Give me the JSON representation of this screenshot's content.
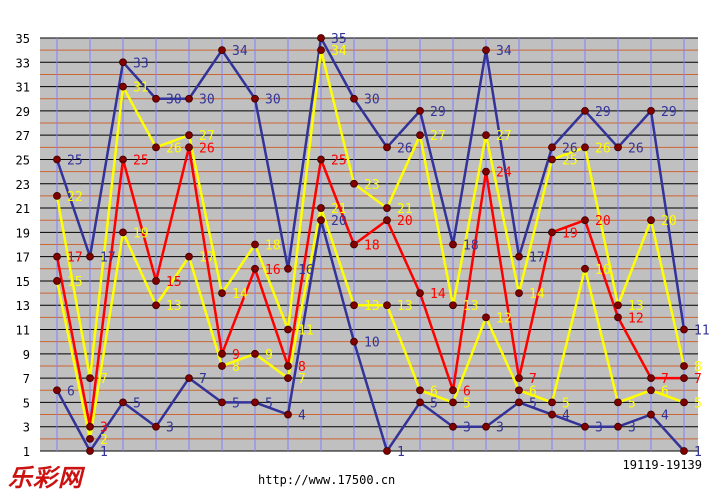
{
  "brand_logo": "乐彩网",
  "url_text": "http://www.17500.cn",
  "issue_range": "19119-19139",
  "colors": {
    "plot_bg": "#c0c0c0",
    "grid_odd": "#000000",
    "grid_even": "#cc6633",
    "grid_vertical": "#8080ff",
    "marker": "#800000"
  },
  "chart_data": {
    "type": "line",
    "x": [
      1,
      2,
      3,
      4,
      5,
      6,
      7,
      8,
      9,
      10,
      11,
      12,
      13,
      14,
      15,
      16,
      17,
      18,
      19,
      20
    ],
    "ylim": [
      1,
      35
    ],
    "yticks": [
      1,
      3,
      5,
      7,
      9,
      11,
      13,
      15,
      17,
      19,
      21,
      23,
      25,
      27,
      29,
      31,
      33,
      35
    ],
    "grid": true,
    "series": [
      {
        "color": "#333399",
        "values": [
          25,
          17,
          33,
          30,
          30,
          34,
          30,
          16,
          35,
          30,
          26,
          29,
          18,
          34,
          17,
          26,
          29,
          26,
          29,
          11
        ]
      },
      {
        "color": "#ffff00",
        "values": [
          22,
          7,
          31,
          26,
          27,
          14,
          18,
          11,
          34,
          23,
          21,
          27,
          13,
          27,
          14,
          25,
          26,
          13,
          20,
          8
        ]
      },
      {
        "color": "#ff0000",
        "values": [
          17,
          3,
          25,
          15,
          26,
          9,
          16,
          8,
          25,
          18,
          20,
          14,
          6,
          24,
          7,
          19,
          20,
          12,
          7,
          7
        ]
      },
      {
        "color": "#ffff00",
        "values": [
          15,
          2,
          19,
          13,
          17,
          8,
          9,
          7,
          21,
          13,
          13,
          6,
          5,
          12,
          6,
          5,
          16,
          5,
          6,
          5
        ]
      },
      {
        "color": "#333399",
        "values": [
          6,
          1,
          5,
          3,
          7,
          5,
          5,
          4,
          20,
          10,
          1,
          5,
          3,
          3,
          5,
          4,
          3,
          3,
          4,
          1
        ]
      }
    ]
  }
}
